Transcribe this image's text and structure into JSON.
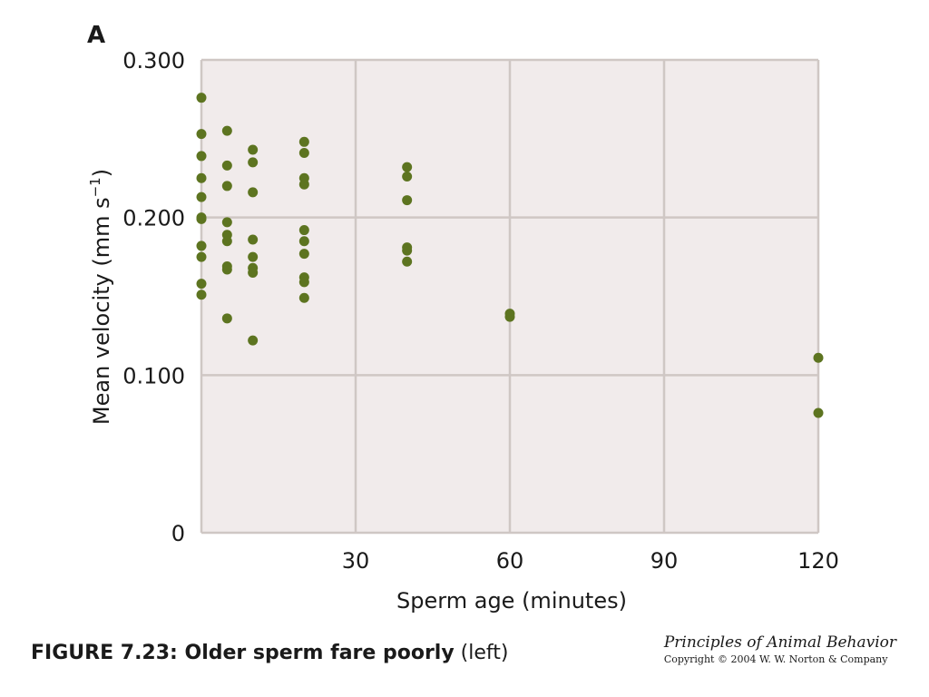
{
  "panel_label": "A",
  "caption": {
    "bold": "FIGURE 7.23: Older sperm fare poorly",
    "rest": " (left)"
  },
  "credit": {
    "title": "Principles of Animal Behavior",
    "copyright": "Copyright © 2004 W. W. Norton & Company"
  },
  "colors": {
    "plot_bg": "#f1ebeb",
    "grid": "#cfc7c4",
    "point": "#5d7420"
  },
  "chart_data": {
    "type": "scatter",
    "xlabel": "Sperm age (minutes)",
    "ylabel_main": "Mean velocity (mm s",
    "ylabel_sup": "−1",
    "ylabel_close": ")",
    "xlim": [
      0,
      120
    ],
    "ylim": [
      0,
      0.3
    ],
    "x_ticks": [
      30,
      60,
      90,
      120
    ],
    "x_tick_labels": [
      "30",
      "60",
      "90",
      "120"
    ],
    "y_ticks": [
      0,
      0.1,
      0.2,
      0.3
    ],
    "y_tick_labels": [
      "0",
      "0.100",
      "0.200",
      "0.300"
    ],
    "grid": true,
    "points": [
      {
        "x": 0,
        "y": 0.276
      },
      {
        "x": 0,
        "y": 0.253
      },
      {
        "x": 0,
        "y": 0.239
      },
      {
        "x": 0,
        "y": 0.225
      },
      {
        "x": 0,
        "y": 0.213
      },
      {
        "x": 0,
        "y": 0.2
      },
      {
        "x": 0,
        "y": 0.199
      },
      {
        "x": 0,
        "y": 0.182
      },
      {
        "x": 0,
        "y": 0.175
      },
      {
        "x": 0,
        "y": 0.158
      },
      {
        "x": 0,
        "y": 0.151
      },
      {
        "x": 5,
        "y": 0.255
      },
      {
        "x": 5,
        "y": 0.233
      },
      {
        "x": 5,
        "y": 0.22
      },
      {
        "x": 5,
        "y": 0.197
      },
      {
        "x": 5,
        "y": 0.189
      },
      {
        "x": 5,
        "y": 0.185
      },
      {
        "x": 5,
        "y": 0.169
      },
      {
        "x": 5,
        "y": 0.167
      },
      {
        "x": 5,
        "y": 0.136
      },
      {
        "x": 10,
        "y": 0.243
      },
      {
        "x": 10,
        "y": 0.235
      },
      {
        "x": 10,
        "y": 0.216
      },
      {
        "x": 10,
        "y": 0.186
      },
      {
        "x": 10,
        "y": 0.175
      },
      {
        "x": 10,
        "y": 0.168
      },
      {
        "x": 10,
        "y": 0.165
      },
      {
        "x": 10,
        "y": 0.122
      },
      {
        "x": 20,
        "y": 0.248
      },
      {
        "x": 20,
        "y": 0.241
      },
      {
        "x": 20,
        "y": 0.225
      },
      {
        "x": 20,
        "y": 0.221
      },
      {
        "x": 20,
        "y": 0.192
      },
      {
        "x": 20,
        "y": 0.185
      },
      {
        "x": 20,
        "y": 0.177
      },
      {
        "x": 20,
        "y": 0.162
      },
      {
        "x": 20,
        "y": 0.159
      },
      {
        "x": 20,
        "y": 0.149
      },
      {
        "x": 40,
        "y": 0.232
      },
      {
        "x": 40,
        "y": 0.226
      },
      {
        "x": 40,
        "y": 0.211
      },
      {
        "x": 40,
        "y": 0.181
      },
      {
        "x": 40,
        "y": 0.179
      },
      {
        "x": 40,
        "y": 0.172
      },
      {
        "x": 60,
        "y": 0.139
      },
      {
        "x": 60,
        "y": 0.137
      },
      {
        "x": 120,
        "y": 0.111
      },
      {
        "x": 120,
        "y": 0.076
      }
    ]
  }
}
